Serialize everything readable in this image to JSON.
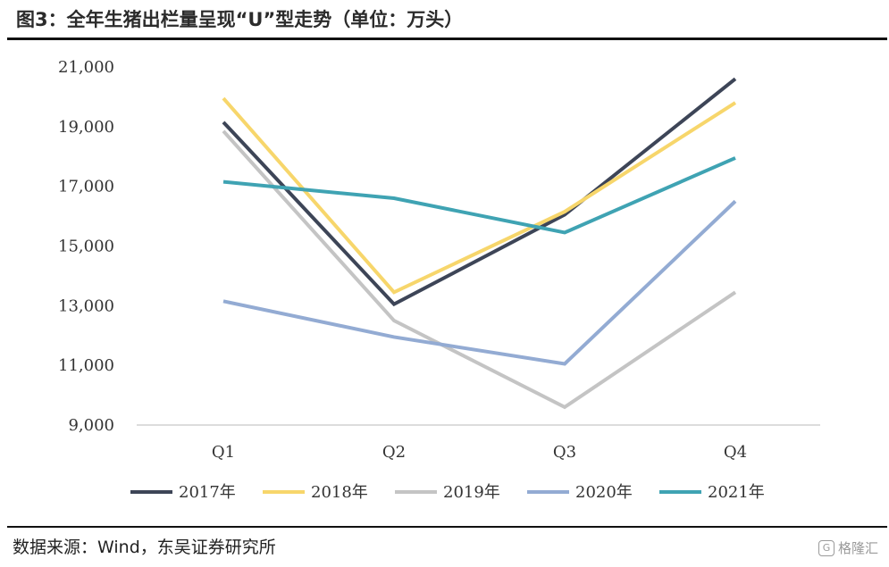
{
  "title": "图3：全年生猪出栏量呈现“U”型走势（单位：万头）",
  "source": "数据来源：Wind，东吴证券研究所",
  "watermark": "格隆汇",
  "chart_data": {
    "type": "line",
    "categories": [
      "Q1",
      "Q2",
      "Q3",
      "Q4"
    ],
    "y_ticks": [
      "9,000",
      "11,000",
      "13,000",
      "15,000",
      "17,000",
      "19,000",
      "21,000"
    ],
    "ylim": [
      9000,
      21000
    ],
    "grid": false,
    "legend_position": "bottom",
    "series": [
      {
        "name": "2017年",
        "color": "#3d4557",
        "values": [
          19150,
          13050,
          16050,
          20600
        ]
      },
      {
        "name": "2018年",
        "color": "#f7d66b",
        "values": [
          19950,
          13450,
          16150,
          19800
        ]
      },
      {
        "name": "2019年",
        "color": "#c4c4c4",
        "values": [
          18850,
          12500,
          9600,
          13450
        ]
      },
      {
        "name": "2020年",
        "color": "#93abd3",
        "values": [
          13150,
          11950,
          11050,
          16500
        ]
      },
      {
        "name": "2021年",
        "color": "#3fa3b3",
        "values": [
          17150,
          16600,
          15450,
          17950
        ]
      }
    ]
  }
}
